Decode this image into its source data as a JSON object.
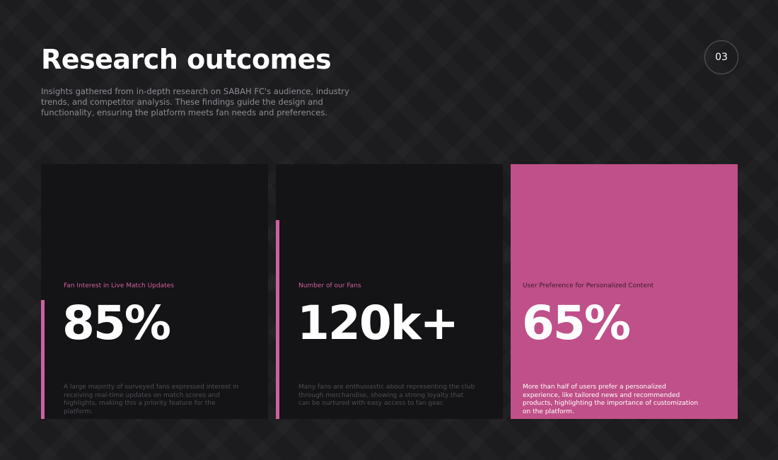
{
  "header": {
    "title": "Research outcomes",
    "subtitle": "Insights gathered from in-depth research on SABAH FC's audience, industry trends, and competitor analysis. These findings guide the design and functionality, ensuring the platform meets fan needs and preferences.",
    "page_number": "03"
  },
  "accent_color": "#d0609e",
  "cards": [
    {
      "label": "Fan Interest in Live Match Updates",
      "value": "85%",
      "description": "A large majority of surveyed fans expressed interest in receiving real-time updates on match scores and highlights, making this a priority feature for the platform."
    },
    {
      "label": "Number of our Fans",
      "value": "120k+",
      "description": "Many fans are enthusiastic about representing the club through merchandise, showing a strong loyalty that can be nurtured with easy access to fan gear."
    },
    {
      "label": "User Preference for Personalized Content",
      "value": "65%",
      "description": "More than half of users prefer a personalized experience, like tailored news and recommended products, highlighting the importance of customization on the platform."
    }
  ]
}
